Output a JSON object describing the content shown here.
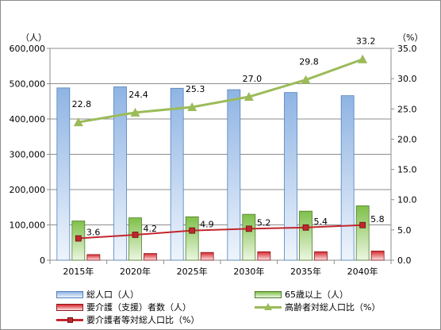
{
  "chart_data": {
    "type": "bar",
    "categories": [
      "2015年",
      "2020年",
      "2025年",
      "2030年",
      "2035年",
      "2040年"
    ],
    "left_axis": {
      "unit": "（人）",
      "min": 0,
      "max": 600000,
      "step": 100000,
      "tick_labels": [
        "0",
        "100,000",
        "200,000",
        "300,000",
        "400,000",
        "500,000",
        "600,000"
      ]
    },
    "right_axis": {
      "unit": "（%）",
      "min": 0,
      "max": 35,
      "step": 5,
      "tick_labels": [
        "0.0",
        "5.0",
        "10.0",
        "15.0",
        "20.0",
        "25.0",
        "30.0",
        "35.0"
      ]
    },
    "series": [
      {
        "name": "総人口（人）",
        "type": "bar",
        "axis": "left",
        "color": "#9dbde6",
        "values": [
          488000,
          491000,
          487000,
          483000,
          475000,
          466000
        ]
      },
      {
        "name": "65歳以上（人）",
        "type": "bar",
        "axis": "left",
        "color": "#9ccc65",
        "values": [
          111000,
          120000,
          123000,
          130000,
          139000,
          154000
        ]
      },
      {
        "name": "要介護（支援）者数（人）",
        "type": "bar",
        "axis": "left",
        "color": "#e0353b",
        "values": [
          16000,
          19000,
          22000,
          24000,
          24000,
          26000
        ]
      },
      {
        "name": "高齢者対総人口比（%）",
        "type": "line",
        "axis": "right",
        "color": "#9bbb59",
        "marker": "triangle",
        "values": [
          22.8,
          24.4,
          25.3,
          27.0,
          29.8,
          33.2
        ],
        "labels": [
          "22.8",
          "24.4",
          "25.3",
          "27.0",
          "29.8",
          "33.2"
        ]
      },
      {
        "name": "要介護者等対総人口比（%）",
        "type": "line",
        "axis": "right",
        "color": "#c0272d",
        "marker": "square",
        "values": [
          3.6,
          4.2,
          4.9,
          5.2,
          5.4,
          5.8
        ],
        "labels": [
          "3.6",
          "4.2",
          "4.9",
          "5.2",
          "5.4",
          "5.8"
        ]
      }
    ],
    "grid": true,
    "legend_position": "bottom"
  }
}
